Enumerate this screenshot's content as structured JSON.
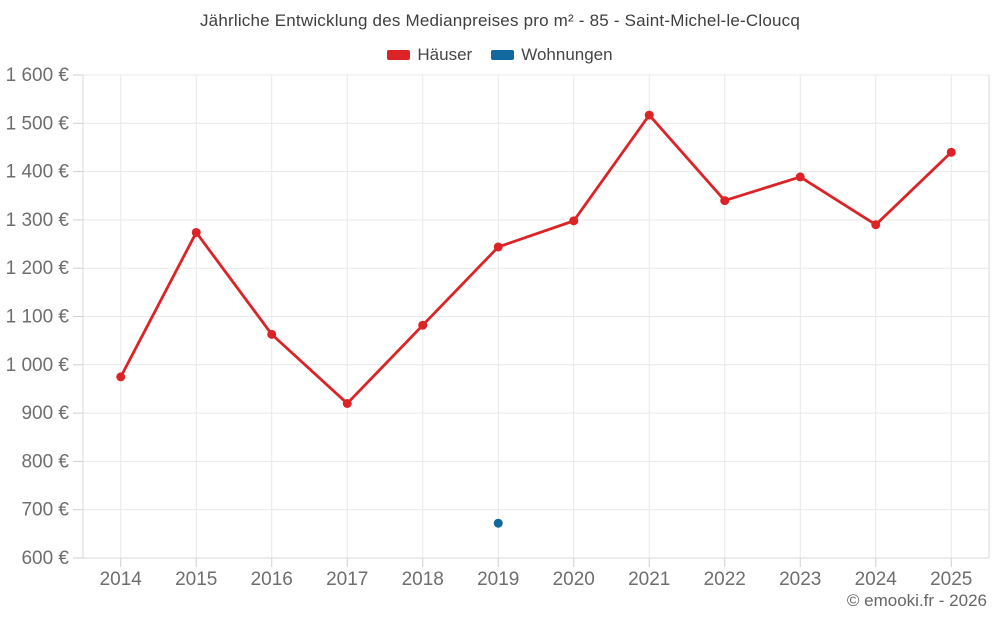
{
  "title": "Jährliche Entwicklung des Medianpreises pro m² - 85 - Saint-Michel-le-Cloucq",
  "footer": "© emooki.fr - 2026",
  "chart_data": {
    "type": "line",
    "title": "Jährliche Entwicklung des Medianpreises pro m² - 85 - Saint-Michel-le-Cloucq",
    "categories": [
      "2014",
      "2015",
      "2016",
      "2017",
      "2018",
      "2019",
      "2020",
      "2021",
      "2022",
      "2023",
      "2024",
      "2025"
    ],
    "series": [
      {
        "name": "Häuser",
        "color": "#dc2427",
        "values": [
          975,
          1274,
          1063,
          920,
          1082,
          1244,
          1298,
          1517,
          1340,
          1389,
          1290,
          1440
        ]
      },
      {
        "name": "Wohnungen",
        "color": "#11699f",
        "values": [
          null,
          null,
          null,
          null,
          null,
          672,
          null,
          null,
          null,
          null,
          null,
          null
        ]
      }
    ],
    "ylabel": "",
    "xlabel": "",
    "ylim": [
      600,
      1600
    ],
    "ytick_step": 100,
    "currency_suffix": " €",
    "grid": true,
    "legend_position": "top",
    "grid_color": "#e9e9e9",
    "axis_color": "#d9d9d9",
    "tick_color": "#cfcfcf",
    "axis_text_color": "#6e6e6e"
  }
}
